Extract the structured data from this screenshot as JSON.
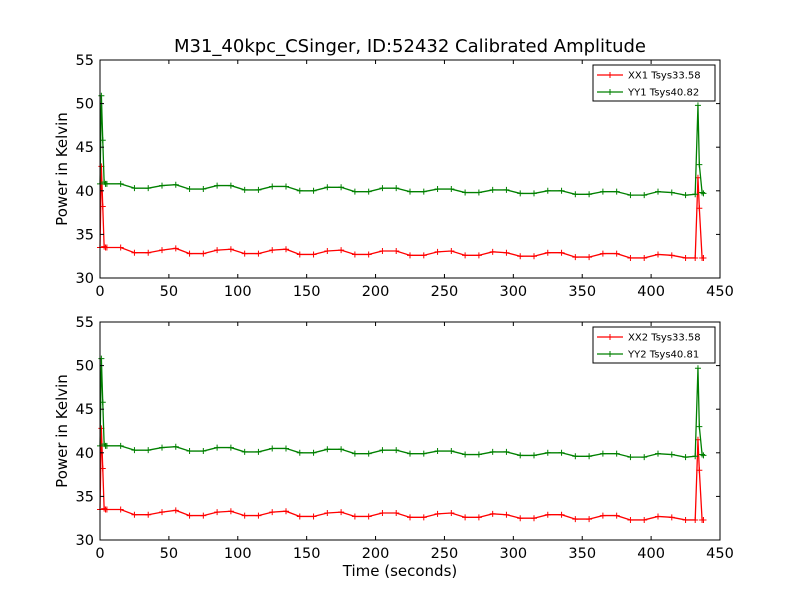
{
  "figure": {
    "title": "M31_40kpc_CSinger, ID:52432 Calibrated Amplitude",
    "background": "#ffffff"
  },
  "chart_data": [
    {
      "type": "line",
      "title": "M31_40kpc_CSinger, ID:52432 Calibrated Amplitude",
      "xlabel": "",
      "ylabel": "Power in Kelvin",
      "xlim": [
        0,
        450
      ],
      "ylim": [
        30,
        55
      ],
      "x_ticks": [
        "0",
        "50",
        "100",
        "150",
        "200",
        "250",
        "300",
        "350",
        "400",
        "450"
      ],
      "y_ticks": [
        "30",
        "35",
        "40",
        "45",
        "50",
        "55"
      ],
      "grid": false,
      "legend": "top-right",
      "series": [
        {
          "name": "XX1 Tsys33.58",
          "color": "#ff0000",
          "x": [
            0,
            1,
            2,
            3,
            4,
            5,
            15,
            25,
            35,
            45,
            55,
            65,
            75,
            85,
            95,
            105,
            115,
            125,
            135,
            145,
            155,
            165,
            175,
            185,
            195,
            205,
            215,
            225,
            235,
            245,
            255,
            265,
            275,
            285,
            295,
            305,
            315,
            325,
            335,
            345,
            355,
            365,
            375,
            385,
            395,
            405,
            415,
            425,
            432,
            434,
            435,
            437,
            438
          ],
          "y": [
            33.5,
            42.8,
            38.2,
            33.6,
            33.5,
            33.5,
            33.5,
            32.9,
            32.9,
            33.2,
            33.4,
            32.8,
            32.8,
            33.2,
            33.3,
            32.8,
            32.8,
            33.2,
            33.3,
            32.7,
            32.7,
            33.1,
            33.2,
            32.7,
            32.7,
            33.1,
            33.1,
            32.6,
            32.6,
            33.0,
            33.1,
            32.6,
            32.6,
            33.0,
            32.9,
            32.5,
            32.5,
            32.9,
            32.9,
            32.4,
            32.4,
            32.8,
            32.8,
            32.3,
            32.3,
            32.7,
            32.6,
            32.3,
            32.3,
            41.5,
            38.0,
            32.3,
            32.3
          ]
        },
        {
          "name": "YY1 Tsys40.82",
          "color": "#008000",
          "x": [
            0,
            1,
            2,
            3,
            4,
            5,
            15,
            25,
            35,
            45,
            55,
            65,
            75,
            85,
            95,
            105,
            115,
            125,
            135,
            145,
            155,
            165,
            175,
            185,
            195,
            205,
            215,
            225,
            235,
            245,
            255,
            265,
            275,
            285,
            295,
            305,
            315,
            325,
            335,
            345,
            355,
            365,
            375,
            385,
            395,
            405,
            415,
            425,
            432,
            434,
            435,
            437,
            438
          ],
          "y": [
            40.8,
            50.9,
            45.8,
            41.0,
            40.8,
            40.8,
            40.8,
            40.3,
            40.3,
            40.6,
            40.7,
            40.2,
            40.2,
            40.6,
            40.6,
            40.1,
            40.1,
            40.5,
            40.5,
            40.0,
            40.0,
            40.4,
            40.4,
            39.9,
            39.9,
            40.3,
            40.3,
            39.9,
            39.9,
            40.2,
            40.2,
            39.8,
            39.8,
            40.1,
            40.1,
            39.7,
            39.7,
            40.0,
            40.0,
            39.6,
            39.6,
            39.9,
            39.9,
            39.5,
            39.5,
            39.9,
            39.8,
            39.5,
            39.6,
            49.8,
            43.0,
            39.8,
            39.7
          ]
        }
      ]
    },
    {
      "type": "line",
      "title": "",
      "xlabel": "Time (seconds)",
      "ylabel": "Power in Kelvin",
      "xlim": [
        0,
        450
      ],
      "ylim": [
        30,
        55
      ],
      "x_ticks": [
        "0",
        "50",
        "100",
        "150",
        "200",
        "250",
        "300",
        "350",
        "400",
        "450"
      ],
      "y_ticks": [
        "30",
        "35",
        "40",
        "45",
        "50",
        "55"
      ],
      "grid": false,
      "legend": "top-right",
      "series": [
        {
          "name": "XX2 Tsys33.58",
          "color": "#ff0000",
          "x": [
            0,
            1,
            2,
            3,
            4,
            5,
            15,
            25,
            35,
            45,
            55,
            65,
            75,
            85,
            95,
            105,
            115,
            125,
            135,
            145,
            155,
            165,
            175,
            185,
            195,
            205,
            215,
            225,
            235,
            245,
            255,
            265,
            275,
            285,
            295,
            305,
            315,
            325,
            335,
            345,
            355,
            365,
            375,
            385,
            395,
            405,
            415,
            425,
            432,
            434,
            435,
            437,
            438
          ],
          "y": [
            33.5,
            42.8,
            38.2,
            33.6,
            33.5,
            33.5,
            33.5,
            32.9,
            32.9,
            33.2,
            33.4,
            32.8,
            32.8,
            33.2,
            33.3,
            32.8,
            32.8,
            33.2,
            33.3,
            32.7,
            32.7,
            33.1,
            33.2,
            32.7,
            32.7,
            33.1,
            33.1,
            32.6,
            32.6,
            33.0,
            33.1,
            32.6,
            32.6,
            33.0,
            32.9,
            32.5,
            32.5,
            32.9,
            32.9,
            32.4,
            32.4,
            32.8,
            32.8,
            32.3,
            32.3,
            32.7,
            32.6,
            32.3,
            32.3,
            41.5,
            38.0,
            32.3,
            32.3
          ]
        },
        {
          "name": "YY2 Tsys40.81",
          "color": "#008000",
          "x": [
            0,
            1,
            2,
            3,
            4,
            5,
            15,
            25,
            35,
            45,
            55,
            65,
            75,
            85,
            95,
            105,
            115,
            125,
            135,
            145,
            155,
            165,
            175,
            185,
            195,
            205,
            215,
            225,
            235,
            245,
            255,
            265,
            275,
            285,
            295,
            305,
            315,
            325,
            335,
            345,
            355,
            365,
            375,
            385,
            395,
            405,
            415,
            425,
            432,
            434,
            435,
            437,
            438
          ],
          "y": [
            40.8,
            50.8,
            45.8,
            41.0,
            40.8,
            40.8,
            40.8,
            40.3,
            40.3,
            40.6,
            40.7,
            40.2,
            40.2,
            40.6,
            40.6,
            40.1,
            40.1,
            40.5,
            40.5,
            40.0,
            40.0,
            40.4,
            40.4,
            39.9,
            39.9,
            40.3,
            40.3,
            39.9,
            39.9,
            40.2,
            40.2,
            39.8,
            39.8,
            40.1,
            40.1,
            39.7,
            39.7,
            40.0,
            40.0,
            39.6,
            39.6,
            39.9,
            39.9,
            39.5,
            39.5,
            39.9,
            39.8,
            39.5,
            39.6,
            49.7,
            43.0,
            39.8,
            39.7
          ]
        }
      ]
    }
  ]
}
